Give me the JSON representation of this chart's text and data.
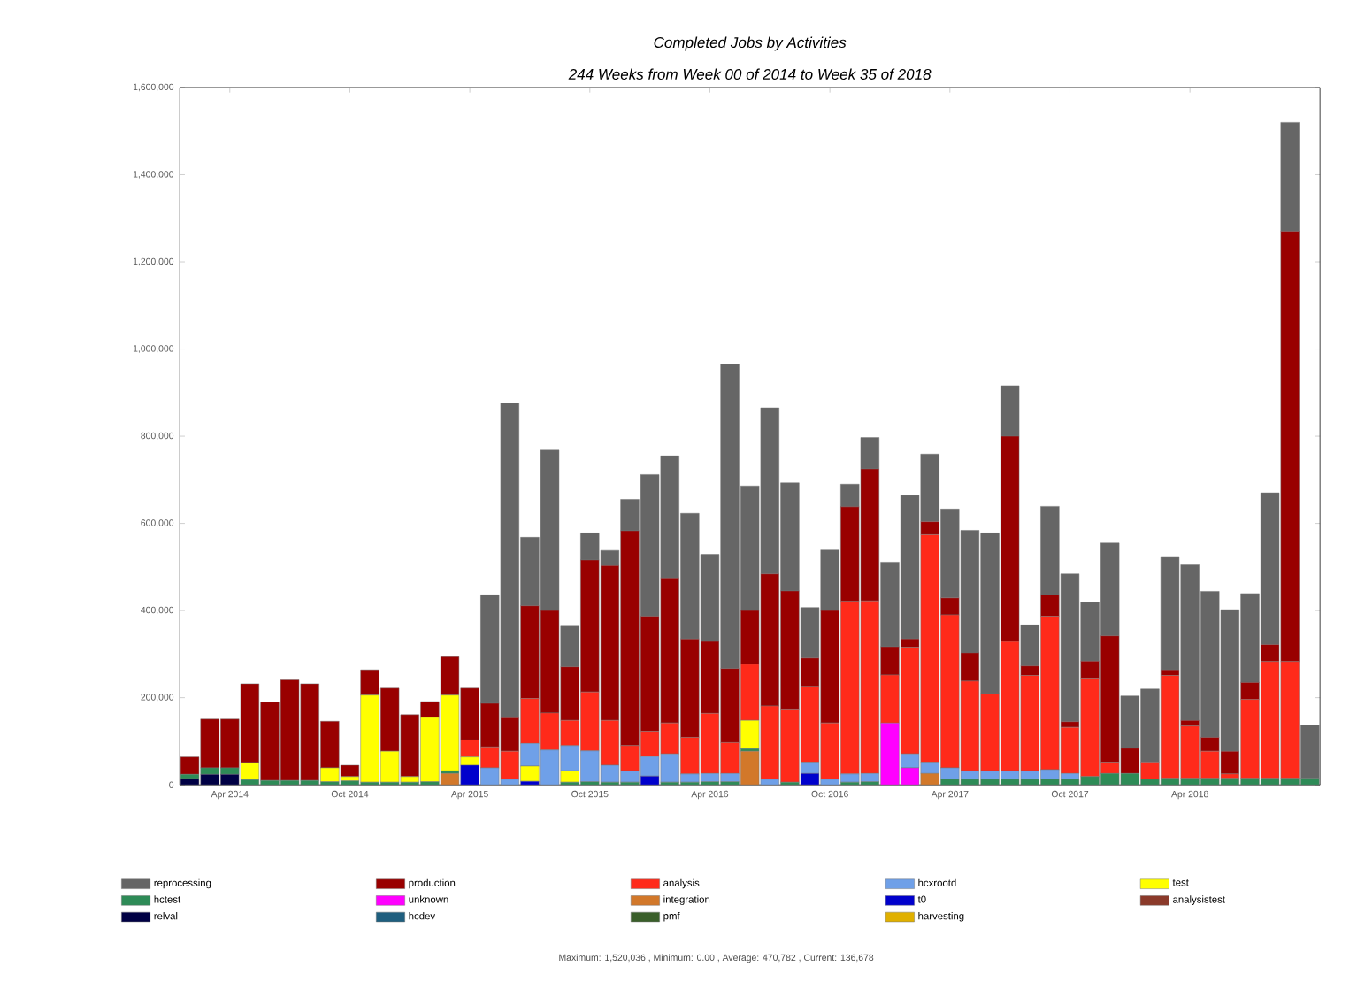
{
  "chart_data": {
    "type": "bar",
    "stacked": true,
    "title": "Completed Jobs by Activities",
    "subtitle": "244 Weeks from Week 00 of 2014 to Week 35 of 2018",
    "categories": [
      null,
      null,
      "Apr 2014",
      null,
      null,
      null,
      null,
      null,
      "Oct 2014",
      null,
      null,
      null,
      null,
      null,
      "Apr 2015",
      null,
      null,
      null,
      null,
      null,
      "Oct 2015",
      null,
      null,
      null,
      null,
      null,
      "Apr 2016",
      null,
      null,
      null,
      null,
      null,
      "Oct 2016",
      null,
      null,
      null,
      null,
      null,
      "Apr 2017",
      null,
      null,
      null,
      null,
      null,
      "Oct 2017",
      null,
      null,
      null,
      null,
      null,
      "Apr 2018",
      null,
      null,
      null,
      null,
      null,
      null
    ],
    "ylim": [
      0,
      1600000
    ],
    "yticks": [
      0,
      {
        "value": 200000,
        "label": "200,000"
      },
      {
        "value": 400000,
        "label": "400,000"
      },
      {
        "value": 600000,
        "label": "600,000"
      },
      {
        "value": 800000,
        "label": "800,000"
      },
      {
        "value": 1000000,
        "label": "1,000,000"
      },
      {
        "value": 1200000,
        "label": "1,200,000"
      },
      {
        "value": 1400000,
        "label": "1,400,000"
      },
      {
        "value": 1600000,
        "label": "1,600,000"
      }
    ],
    "legend": "bottom",
    "series": [
      {
        "name": "harvesting",
        "color": "#e0b000",
        "values": [
          0,
          0,
          0,
          0,
          0,
          0,
          0,
          0,
          0,
          0,
          0,
          0,
          0,
          0,
          0,
          0,
          0,
          0,
          0,
          0,
          0,
          0,
          0,
          0,
          0,
          0,
          0,
          0,
          0,
          0,
          0,
          0,
          0,
          0,
          0,
          0,
          0,
          0,
          0,
          0,
          0,
          0,
          0,
          0,
          0,
          0,
          0,
          0,
          0,
          0,
          0,
          0,
          0,
          0,
          0,
          0,
          0
        ]
      },
      {
        "name": "pmf",
        "color": "#3a5f2a",
        "values": [
          0,
          0,
          0,
          0,
          0,
          0,
          0,
          0,
          0,
          0,
          0,
          0,
          0,
          0,
          0,
          0,
          0,
          0,
          0,
          0,
          0,
          0,
          0,
          0,
          0,
          0,
          0,
          0,
          0,
          0,
          0,
          0,
          0,
          0,
          0,
          0,
          0,
          0,
          0,
          0,
          0,
          0,
          0,
          0,
          0,
          0,
          0,
          0,
          0,
          0,
          0,
          0,
          0,
          0,
          0,
          0,
          0
        ]
      },
      {
        "name": "hcdev",
        "color": "#1f5f7f",
        "values": [
          0,
          0,
          0,
          0,
          0,
          0,
          0,
          0,
          0,
          0,
          0,
          0,
          0,
          0,
          0,
          0,
          0,
          0,
          0,
          0,
          0,
          0,
          0,
          0,
          0,
          0,
          0,
          0,
          0,
          0,
          0,
          0,
          0,
          0,
          0,
          0,
          0,
          0,
          0,
          0,
          0,
          0,
          0,
          0,
          0,
          0,
          0,
          0,
          0,
          0,
          0,
          0,
          0,
          0,
          0,
          0,
          0
        ]
      },
      {
        "name": "relval",
        "color": "#000044",
        "values": [
          14000,
          24000,
          24000,
          0,
          0,
          0,
          0,
          0,
          0,
          0,
          0,
          0,
          0,
          0,
          0,
          0,
          0,
          0,
          0,
          0,
          0,
          0,
          0,
          0,
          0,
          0,
          0,
          0,
          0,
          0,
          0,
          0,
          0,
          0,
          0,
          0,
          0,
          0,
          0,
          0,
          0,
          0,
          0,
          0,
          0,
          0,
          0,
          0,
          0,
          0,
          0,
          0,
          0,
          0,
          0,
          0,
          0
        ]
      },
      {
        "name": "analysistest",
        "color": "#8b3a2a",
        "values": [
          0,
          0,
          0,
          0,
          0,
          0,
          0,
          0,
          0,
          0,
          0,
          0,
          0,
          0,
          0,
          0,
          0,
          0,
          0,
          0,
          0,
          0,
          0,
          0,
          0,
          0,
          0,
          0,
          0,
          0,
          0,
          0,
          0,
          0,
          0,
          0,
          0,
          0,
          0,
          0,
          0,
          0,
          0,
          0,
          0,
          0,
          0,
          0,
          0,
          0,
          0,
          0,
          0,
          0,
          0,
          0,
          0
        ]
      },
      {
        "name": "t0",
        "color": "#0000cc",
        "values": [
          0,
          0,
          0,
          0,
          0,
          0,
          0,
          0,
          0,
          0,
          0,
          0,
          0,
          0,
          45000,
          0,
          0,
          8000,
          0,
          0,
          0,
          0,
          0,
          20000,
          0,
          0,
          0,
          0,
          0,
          0,
          0,
          26000,
          0,
          0,
          0,
          0,
          0,
          0,
          0,
          0,
          0,
          0,
          0,
          0,
          0,
          0,
          0,
          0,
          0,
          0,
          0,
          0,
          0,
          0,
          0,
          0,
          0
        ]
      },
      {
        "name": "integration",
        "color": "#d2782a",
        "values": [
          0,
          0,
          0,
          0,
          0,
          0,
          0,
          0,
          0,
          0,
          0,
          0,
          0,
          26000,
          0,
          0,
          0,
          0,
          0,
          0,
          0,
          0,
          0,
          0,
          0,
          0,
          0,
          0,
          77000,
          0,
          0,
          0,
          0,
          0,
          0,
          0,
          0,
          26000,
          0,
          0,
          0,
          0,
          0,
          0,
          0,
          0,
          0,
          0,
          0,
          0,
          0,
          0,
          0,
          0,
          0,
          0,
          0
        ]
      },
      {
        "name": "unknown",
        "color": "#ff00ff",
        "values": [
          0,
          0,
          0,
          0,
          0,
          0,
          0,
          0,
          0,
          0,
          0,
          0,
          0,
          0,
          0,
          0,
          0,
          0,
          0,
          0,
          0,
          0,
          0,
          0,
          0,
          0,
          0,
          0,
          0,
          0,
          0,
          0,
          0,
          0,
          0,
          142000,
          39000,
          0,
          0,
          0,
          0,
          0,
          0,
          0,
          0,
          0,
          0,
          0,
          0,
          0,
          0,
          0,
          0,
          0,
          0,
          0,
          0
        ]
      },
      {
        "name": "hctest",
        "color": "#2e8b57",
        "values": [
          10000,
          15000,
          15000,
          12000,
          10000,
          10000,
          10000,
          7000,
          9000,
          6000,
          6000,
          6000,
          7000,
          6000,
          0,
          0,
          0,
          0,
          0,
          6000,
          7000,
          6000,
          6000,
          0,
          6000,
          6000,
          7000,
          7000,
          6000,
          0,
          6000,
          0,
          0,
          6000,
          7000,
          0,
          0,
          0,
          13000,
          13000,
          13000,
          13000,
          13000,
          13000,
          13000,
          19000,
          26000,
          26000,
          13000,
          15000,
          15000,
          15000,
          15000,
          15000,
          15000,
          15000,
          15000
        ]
      },
      {
        "name": "test",
        "color": "#ffff00",
        "values": [
          0,
          0,
          0,
          39000,
          0,
          0,
          0,
          32000,
          10000,
          200000,
          71000,
          13000,
          148000,
          174000,
          19000,
          0,
          0,
          35000,
          0,
          26000,
          0,
          0,
          0,
          0,
          0,
          0,
          0,
          0,
          65000,
          0,
          0,
          0,
          0,
          0,
          0,
          0,
          0,
          0,
          0,
          0,
          0,
          0,
          0,
          0,
          0,
          0,
          0,
          0,
          0,
          0,
          0,
          0,
          0,
          0,
          0,
          0,
          0
        ]
      },
      {
        "name": "hcxrootd",
        "color": "#6fa0e8",
        "values": [
          0,
          0,
          0,
          0,
          0,
          0,
          0,
          0,
          0,
          0,
          0,
          0,
          0,
          0,
          0,
          39000,
          13000,
          52000,
          80000,
          58000,
          71000,
          39000,
          26000,
          45000,
          65000,
          19000,
          19000,
          19000,
          0,
          13000,
          0,
          26000,
          13000,
          19000,
          19000,
          0,
          32000,
          26000,
          26000,
          19000,
          19000,
          19000,
          19000,
          22000,
          13000,
          0,
          0,
          0,
          0,
          0,
          0,
          0,
          0,
          0,
          0,
          0,
          0
        ]
      },
      {
        "name": "analysis",
        "color": "#ff2a1a",
        "values": [
          0,
          0,
          0,
          0,
          0,
          0,
          0,
          0,
          0,
          0,
          0,
          0,
          0,
          0,
          39000,
          48000,
          64000,
          103000,
          85000,
          58000,
          135000,
          103000,
          58000,
          58000,
          71000,
          84000,
          138000,
          71000,
          129000,
          168000,
          168000,
          174000,
          129000,
          396000,
          396000,
          110000,
          245000,
          522000,
          351000,
          206000,
          177000,
          297000,
          219000,
          352000,
          106000,
          226000,
          26000,
          0,
          39000,
          236000,
          120000,
          62000,
          10000,
          181000,
          268000,
          268000,
          0
        ]
      },
      {
        "name": "production",
        "color": "#990000",
        "values": [
          40000,
          112000,
          112000,
          181000,
          180000,
          231000,
          222000,
          107000,
          26000,
          58000,
          145000,
          142000,
          36000,
          88000,
          119000,
          100000,
          77000,
          213000,
          235000,
          123000,
          303000,
          355000,
          493000,
          264000,
          333000,
          226000,
          165000,
          170000,
          123000,
          303000,
          271000,
          65000,
          258000,
          217000,
          303000,
          65000,
          19000,
          30000,
          39000,
          65000,
          0,
          471000,
          22000,
          49000,
          13000,
          39000,
          290000,
          58000,
          0,
          13000,
          13000,
          32000,
          52000,
          39000,
          39000,
          987000,
          0
        ]
      },
      {
        "name": "reprocessing",
        "color": "#666666",
        "values": [
          0,
          0,
          0,
          0,
          0,
          0,
          0,
          0,
          0,
          0,
          0,
          0,
          0,
          0,
          0,
          249000,
          722000,
          157000,
          368000,
          93000,
          62000,
          35000,
          72000,
          325000,
          280000,
          288000,
          200000,
          698000,
          286000,
          381000,
          248000,
          116000,
          139000,
          52000,
          72000,
          194000,
          329000,
          155000,
          204000,
          281000,
          369000,
          116000,
          94000,
          203000,
          339000,
          135000,
          213000,
          120000,
          168000,
          258000,
          357000,
          335000,
          325000,
          204000,
          348000,
          250000,
          122000
        ]
      }
    ],
    "annotations": [
      "Maximum: 1,520,036 , Minimum: 0.00 , Average: 470,782 , Current: 136,678"
    ]
  }
}
